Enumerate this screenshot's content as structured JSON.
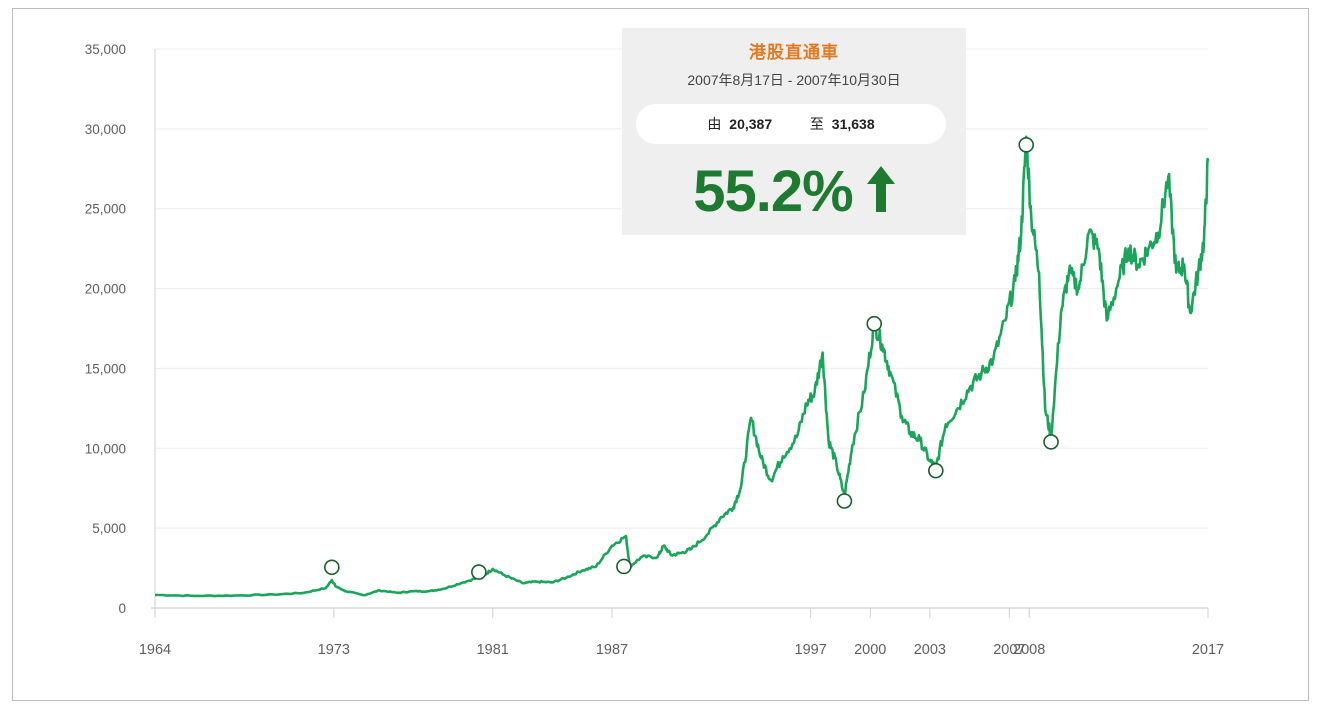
{
  "chart_data": {
    "type": "line",
    "title": "",
    "xlabel": "",
    "ylabel": "",
    "ylim": [
      0,
      35000
    ],
    "xlim": [
      1964,
      2017
    ],
    "yticks": [
      "0",
      "5,000",
      "10,000",
      "15,000",
      "20,000",
      "25,000",
      "30,000",
      "35,000"
    ],
    "xticks": [
      {
        "year": 1964,
        "label": "1964"
      },
      {
        "year": 1973,
        "label": "1973"
      },
      {
        "year": 1981,
        "label": "1981"
      },
      {
        "year": 1987,
        "label": "1987"
      },
      {
        "year": 1997,
        "label": "1997"
      },
      {
        "year": 2000,
        "label": "2000"
      },
      {
        "year": 2003,
        "label": "2003"
      },
      {
        "year": 2007,
        "label": "2007"
      },
      {
        "year": 2008,
        "label": "2008"
      },
      {
        "year": 2017,
        "label": "2017"
      }
    ],
    "grid": true,
    "line_color": "#1aa55a",
    "series": [
      {
        "values": [
          [
            1964.0,
            820
          ],
          [
            1966.0,
            760
          ],
          [
            1968.0,
            780
          ],
          [
            1970.0,
            840
          ],
          [
            1971.5,
            950
          ],
          [
            1972.6,
            1250
          ],
          [
            1972.9,
            1750
          ],
          [
            1973.1,
            1350
          ],
          [
            1973.6,
            1050
          ],
          [
            1974.5,
            800
          ],
          [
            1975.3,
            1100
          ],
          [
            1976.2,
            950
          ],
          [
            1977.0,
            1050
          ],
          [
            1977.8,
            1050
          ],
          [
            1978.5,
            1200
          ],
          [
            1979.5,
            1600
          ],
          [
            1980.5,
            2000
          ],
          [
            1981.0,
            2450
          ],
          [
            1981.6,
            2050
          ],
          [
            1982.5,
            1550
          ],
          [
            1983.2,
            1650
          ],
          [
            1984.0,
            1600
          ],
          [
            1984.7,
            1900
          ],
          [
            1985.5,
            2350
          ],
          [
            1986.2,
            2600
          ],
          [
            1987.0,
            3900
          ],
          [
            1987.7,
            4500
          ],
          [
            1987.9,
            2600
          ],
          [
            1988.5,
            3200
          ],
          [
            1989.3,
            3200
          ],
          [
            1989.6,
            3900
          ],
          [
            1990.0,
            3300
          ],
          [
            1990.5,
            3450
          ],
          [
            1991.0,
            3700
          ],
          [
            1991.8,
            4600
          ],
          [
            1992.5,
            5700
          ],
          [
            1993.1,
            6300
          ],
          [
            1993.5,
            7600
          ],
          [
            1994.0,
            11900
          ],
          [
            1994.5,
            9400
          ],
          [
            1995.0,
            8000
          ],
          [
            1995.6,
            9500
          ],
          [
            1996.3,
            10700
          ],
          [
            1996.8,
            12800
          ],
          [
            1997.2,
            13500
          ],
          [
            1997.6,
            16000
          ],
          [
            1997.9,
            10500
          ],
          [
            1998.3,
            9000
          ],
          [
            1998.7,
            7000
          ],
          [
            1999.1,
            10200
          ],
          [
            1999.7,
            13500
          ],
          [
            2000.2,
            17800
          ],
          [
            2000.6,
            16500
          ],
          [
            2001.0,
            14800
          ],
          [
            2001.6,
            12000
          ],
          [
            2002.0,
            11000
          ],
          [
            2002.5,
            10500
          ],
          [
            2003.0,
            9200
          ],
          [
            2003.3,
            8800
          ],
          [
            2003.8,
            11500
          ],
          [
            2004.4,
            12500
          ],
          [
            2005.0,
            13800
          ],
          [
            2005.6,
            14700
          ],
          [
            2006.2,
            15600
          ],
          [
            2006.8,
            18000
          ],
          [
            2007.3,
            20500
          ],
          [
            2007.6,
            23500
          ],
          [
            2007.85,
            29500
          ],
          [
            2008.1,
            24500
          ],
          [
            2008.5,
            21000
          ],
          [
            2008.8,
            12500
          ],
          [
            2009.1,
            10700
          ],
          [
            2009.6,
            18500
          ],
          [
            2010.0,
            21000
          ],
          [
            2010.5,
            20000
          ],
          [
            2011.0,
            23500
          ],
          [
            2011.5,
            22500
          ],
          [
            2011.9,
            18000
          ],
          [
            2012.5,
            20500
          ],
          [
            2013.0,
            22500
          ],
          [
            2013.5,
            21500
          ],
          [
            2014.0,
            22500
          ],
          [
            2014.5,
            23500
          ],
          [
            2015.0,
            27000
          ],
          [
            2015.4,
            21000
          ],
          [
            2015.8,
            21500
          ],
          [
            2016.1,
            18500
          ],
          [
            2016.5,
            21000
          ],
          [
            2016.8,
            23000
          ],
          [
            2017.0,
            28000
          ]
        ]
      }
    ],
    "highlight_points": [
      [
        1972.9,
        2550
      ],
      [
        1980.3,
        2250
      ],
      [
        1987.6,
        2600
      ],
      [
        1998.7,
        6700
      ],
      [
        2000.2,
        17800
      ],
      [
        2003.3,
        8600
      ],
      [
        2007.85,
        29000
      ],
      [
        2009.1,
        10400
      ]
    ],
    "annotations": [
      {
        "title": "港股直通車",
        "date_range": "2007年8月17日 - 2007年10月30日",
        "from_label": "由",
        "from_value": "20,387",
        "to_label": "至",
        "to_value": "31,638",
        "change": "55.2%",
        "direction": "up",
        "title_color": "#e07b24",
        "change_color": "#1d7a30"
      }
    ]
  }
}
